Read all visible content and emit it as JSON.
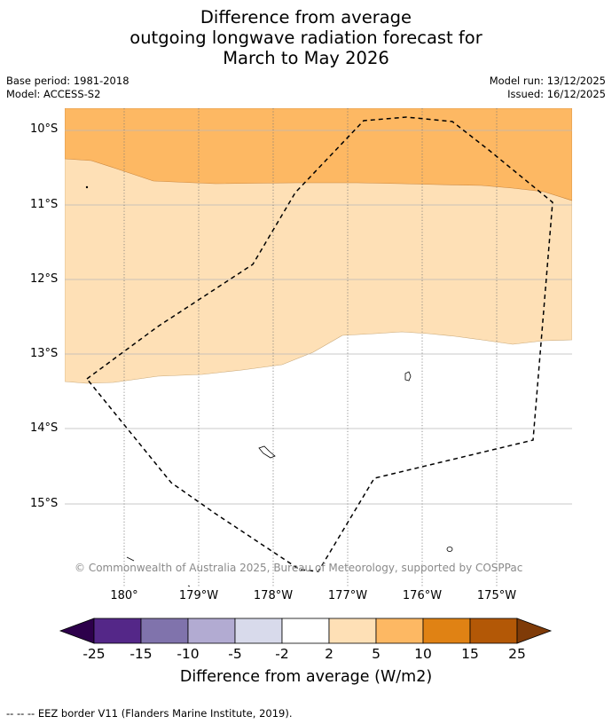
{
  "title": {
    "line1": "Difference from average",
    "line2": "outgoing longwave radiation forecast for",
    "line3": "March to May 2026"
  },
  "meta": {
    "base_period": "Base period: 1981-2018",
    "model": "Model: ACCESS-S2",
    "model_run": "Model run: 13/12/2025",
    "issued": "Issued: 16/12/2025"
  },
  "map": {
    "lat_labels": [
      "10°S",
      "11°S",
      "12°S",
      "13°S",
      "14°S",
      "15°S"
    ],
    "lon_labels": [
      "180°",
      "179°W",
      "178°W",
      "177°W",
      "176°W",
      "175°W"
    ],
    "copyright": "© Commonwealth of Australia 2025, Bureau of Meteorology, supported by COSPPac",
    "colors": {
      "anomaly_5_to_10": "#fdb863",
      "anomaly_2_to_5": "#fee0b6",
      "anomaly_minus2_to_2": "#ffffff",
      "eez_border": "#000000",
      "lat_grid": "#b8b8b8",
      "lon_grid": "#888888"
    }
  },
  "colorbar": {
    "title": "Difference from average (W/m2)",
    "ticks": [
      "-25",
      "-15",
      "-10",
      "-5",
      "-2",
      "2",
      "5",
      "10",
      "15",
      "25"
    ],
    "colors": {
      "below_-25": "#2d004b",
      "-25_to_-15": "#542788",
      "-15_to_-10": "#8073ac",
      "-10_to_-5": "#b2abd2",
      "-5_to_-2": "#d8daeb",
      "-2_to_2": "#ffffff",
      "2_to_5": "#fee0b6",
      "5_to_10": "#fdb863",
      "10_to_15": "#e08214",
      "15_to_25": "#b35806",
      "above_25": "#7f3b08"
    }
  },
  "footer": "-- -- -- EEZ border V11 (Flanders Marine Institute, 2019)."
}
